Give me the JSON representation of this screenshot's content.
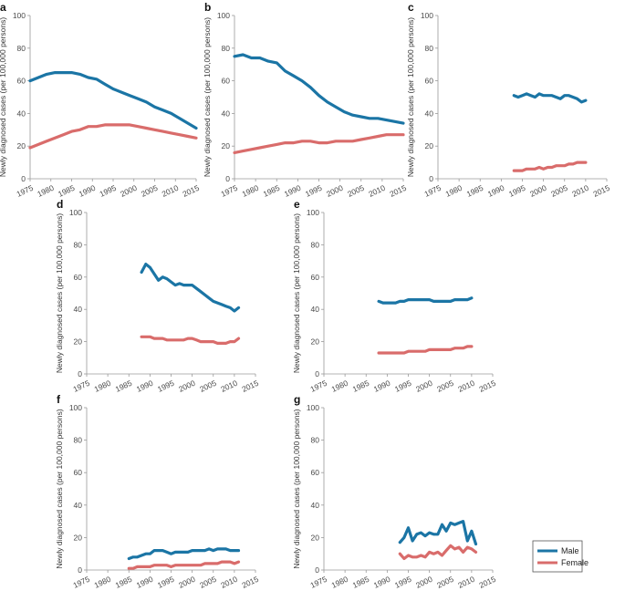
{
  "legend": {
    "items": [
      {
        "label": "Male",
        "color": "#1b75a5"
      },
      {
        "label": "Female",
        "color": "#d96c6b"
      }
    ]
  },
  "chart_data": [
    {
      "panel": "a",
      "type": "line",
      "ylabel": "Newly diagnosed cases (per 100,000 persons)",
      "xlim": [
        1975,
        2015
      ],
      "ylim": [
        0,
        100
      ],
      "xticks": [
        "1975",
        "1980",
        "1985",
        "1990",
        "1995",
        "2000",
        "2005",
        "2010",
        "2015"
      ],
      "yticks": [
        "0",
        "20",
        "40",
        "60",
        "80",
        "100"
      ],
      "series": [
        {
          "name": "Male",
          "color": "#1b75a5",
          "x": [
            1975,
            1977,
            1979,
            1981,
            1983,
            1985,
            1987,
            1989,
            1991,
            1993,
            1995,
            1997,
            1999,
            2001,
            2003,
            2005,
            2007,
            2009,
            2011,
            2013,
            2015
          ],
          "y": [
            60,
            62,
            64,
            65,
            65,
            65,
            64,
            62,
            61,
            58,
            55,
            53,
            51,
            49,
            47,
            44,
            42,
            40,
            37,
            34,
            31
          ]
        },
        {
          "name": "Female",
          "color": "#d96c6b",
          "x": [
            1975,
            1977,
            1979,
            1981,
            1983,
            1985,
            1987,
            1989,
            1991,
            1993,
            1995,
            1997,
            1999,
            2001,
            2003,
            2005,
            2007,
            2009,
            2011,
            2013,
            2015
          ],
          "y": [
            19,
            21,
            23,
            25,
            27,
            29,
            30,
            32,
            32,
            33,
            33,
            33,
            33,
            32,
            31,
            30,
            29,
            28,
            27,
            26,
            25
          ]
        }
      ]
    },
    {
      "panel": "b",
      "type": "line",
      "ylabel": "Newly diagnosed cases (per 100,000 persons)",
      "xlim": [
        1975,
        2015
      ],
      "ylim": [
        0,
        100
      ],
      "xticks": [
        "1975",
        "1980",
        "1985",
        "1990",
        "1995",
        "2000",
        "2005",
        "2010",
        "2015"
      ],
      "yticks": [
        "0",
        "20",
        "40",
        "60",
        "80",
        "100"
      ],
      "series": [
        {
          "name": "Male",
          "color": "#1b75a5",
          "x": [
            1975,
            1977,
            1979,
            1981,
            1983,
            1985,
            1987,
            1989,
            1991,
            1993,
            1995,
            1997,
            1999,
            2001,
            2003,
            2005,
            2007,
            2009,
            2011,
            2013,
            2015
          ],
          "y": [
            75,
            76,
            74,
            74,
            72,
            71,
            66,
            63,
            60,
            56,
            51,
            47,
            44,
            41,
            39,
            38,
            37,
            37,
            36,
            35,
            34
          ]
        },
        {
          "name": "Female",
          "color": "#d96c6b",
          "x": [
            1975,
            1977,
            1979,
            1981,
            1983,
            1985,
            1987,
            1989,
            1991,
            1993,
            1995,
            1997,
            1999,
            2001,
            2003,
            2005,
            2007,
            2009,
            2011,
            2013,
            2015
          ],
          "y": [
            16,
            17,
            18,
            19,
            20,
            21,
            22,
            22,
            23,
            23,
            22,
            22,
            23,
            23,
            23,
            24,
            25,
            26,
            27,
            27,
            27
          ]
        }
      ]
    },
    {
      "panel": "c",
      "type": "line",
      "ylabel": "Newly diagnosed cases (per 100,000 persons)",
      "xlim": [
        1975,
        2015
      ],
      "ylim": [
        0,
        100
      ],
      "xticks": [
        "1975",
        "1980",
        "1985",
        "1990",
        "1995",
        "2000",
        "2005",
        "2010",
        "2015"
      ],
      "yticks": [
        "0",
        "20",
        "40",
        "60",
        "80",
        "100"
      ],
      "series": [
        {
          "name": "Male",
          "color": "#1b75a5",
          "x": [
            1993,
            1994,
            1995,
            1996,
            1997,
            1998,
            1999,
            2000,
            2001,
            2002,
            2003,
            2004,
            2005,
            2006,
            2007,
            2008,
            2009,
            2010
          ],
          "y": [
            51,
            50,
            51,
            52,
            51,
            50,
            52,
            51,
            51,
            51,
            50,
            49,
            51,
            51,
            50,
            49,
            47,
            48
          ]
        },
        {
          "name": "Female",
          "color": "#d96c6b",
          "x": [
            1993,
            1994,
            1995,
            1996,
            1997,
            1998,
            1999,
            2000,
            2001,
            2002,
            2003,
            2004,
            2005,
            2006,
            2007,
            2008,
            2009,
            2010
          ],
          "y": [
            5,
            5,
            5,
            6,
            6,
            6,
            7,
            6,
            7,
            7,
            8,
            8,
            8,
            9,
            9,
            10,
            10,
            10
          ]
        }
      ]
    },
    {
      "panel": "d",
      "type": "line",
      "ylabel": "Newly diagnosed cases (per 100,000 persons)",
      "xlim": [
        1975,
        2015
      ],
      "ylim": [
        0,
        100
      ],
      "xticks": [
        "1975",
        "1980",
        "1985",
        "1990",
        "1995",
        "2000",
        "2005",
        "2010",
        "2015"
      ],
      "yticks": [
        "0",
        "20",
        "40",
        "60",
        "80",
        "100"
      ],
      "series": [
        {
          "name": "Male",
          "color": "#1b75a5",
          "x": [
            1988,
            1989,
            1990,
            1991,
            1992,
            1993,
            1994,
            1995,
            1996,
            1997,
            1998,
            1999,
            2000,
            2001,
            2002,
            2003,
            2004,
            2005,
            2006,
            2007,
            2008,
            2009,
            2010,
            2011
          ],
          "y": [
            63,
            68,
            66,
            62,
            58,
            60,
            59,
            57,
            55,
            56,
            55,
            55,
            55,
            53,
            51,
            49,
            47,
            45,
            44,
            43,
            42,
            41,
            39,
            41
          ]
        },
        {
          "name": "Female",
          "color": "#d96c6b",
          "x": [
            1988,
            1989,
            1990,
            1991,
            1992,
            1993,
            1994,
            1995,
            1996,
            1997,
            1998,
            1999,
            2000,
            2001,
            2002,
            2003,
            2004,
            2005,
            2006,
            2007,
            2008,
            2009,
            2010,
            2011
          ],
          "y": [
            23,
            23,
            23,
            22,
            22,
            22,
            21,
            21,
            21,
            21,
            21,
            22,
            22,
            21,
            20,
            20,
            20,
            20,
            19,
            19,
            19,
            20,
            20,
            22
          ]
        }
      ]
    },
    {
      "panel": "e",
      "type": "line",
      "ylabel": "Newly diagnosed cases (per 100,000 persons)",
      "xlim": [
        1975,
        2015
      ],
      "ylim": [
        0,
        100
      ],
      "xticks": [
        "1975",
        "1980",
        "1985",
        "1990",
        "1995",
        "2000",
        "2005",
        "2010",
        "2015"
      ],
      "yticks": [
        "0",
        "20",
        "40",
        "60",
        "80",
        "100"
      ],
      "series": [
        {
          "name": "Male",
          "color": "#1b75a5",
          "x": [
            1988,
            1989,
            1990,
            1991,
            1992,
            1993,
            1994,
            1995,
            1996,
            1997,
            1998,
            1999,
            2000,
            2001,
            2002,
            2003,
            2004,
            2005,
            2006,
            2007,
            2008,
            2009,
            2010
          ],
          "y": [
            45,
            44,
            44,
            44,
            44,
            45,
            45,
            46,
            46,
            46,
            46,
            46,
            46,
            45,
            45,
            45,
            45,
            45,
            46,
            46,
            46,
            46,
            47
          ]
        },
        {
          "name": "Female",
          "color": "#d96c6b",
          "x": [
            1988,
            1989,
            1990,
            1991,
            1992,
            1993,
            1994,
            1995,
            1996,
            1997,
            1998,
            1999,
            2000,
            2001,
            2002,
            2003,
            2004,
            2005,
            2006,
            2007,
            2008,
            2009,
            2010
          ],
          "y": [
            13,
            13,
            13,
            13,
            13,
            13,
            13,
            14,
            14,
            14,
            14,
            14,
            15,
            15,
            15,
            15,
            15,
            15,
            16,
            16,
            16,
            17,
            17
          ]
        }
      ]
    },
    {
      "panel": "f",
      "type": "line",
      "ylabel": "Newly diagnosed cases (per 100,000 persons)",
      "xlim": [
        1975,
        2015
      ],
      "ylim": [
        0,
        100
      ],
      "xticks": [
        "1975",
        "1980",
        "1985",
        "1990",
        "1995",
        "2000",
        "2005",
        "2010",
        "2015"
      ],
      "yticks": [
        "0",
        "20",
        "40",
        "60",
        "80",
        "100"
      ],
      "series": [
        {
          "name": "Male",
          "color": "#1b75a5",
          "x": [
            1985,
            1986,
            1987,
            1988,
            1989,
            1990,
            1991,
            1992,
            1993,
            1994,
            1995,
            1996,
            1997,
            1998,
            1999,
            2000,
            2001,
            2002,
            2003,
            2004,
            2005,
            2006,
            2007,
            2008,
            2009,
            2010,
            2011
          ],
          "y": [
            7,
            8,
            8,
            9,
            10,
            10,
            12,
            12,
            12,
            11,
            10,
            11,
            11,
            11,
            11,
            12,
            12,
            12,
            12,
            13,
            12,
            13,
            13,
            13,
            12,
            12,
            12
          ]
        },
        {
          "name": "Female",
          "color": "#d96c6b",
          "x": [
            1985,
            1986,
            1987,
            1988,
            1989,
            1990,
            1991,
            1992,
            1993,
            1994,
            1995,
            1996,
            1997,
            1998,
            1999,
            2000,
            2001,
            2002,
            2003,
            2004,
            2005,
            2006,
            2007,
            2008,
            2009,
            2010,
            2011
          ],
          "y": [
            1,
            1,
            2,
            2,
            2,
            2,
            3,
            3,
            3,
            3,
            2,
            3,
            3,
            3,
            3,
            3,
            3,
            3,
            4,
            4,
            4,
            4,
            5,
            5,
            5,
            4,
            5
          ]
        }
      ]
    },
    {
      "panel": "g",
      "type": "line",
      "ylabel": "Newly diagnosed cases (per 100,000 persons)",
      "xlim": [
        1975,
        2015
      ],
      "ylim": [
        0,
        100
      ],
      "xticks": [
        "1975",
        "1980",
        "1985",
        "1990",
        "1995",
        "2000",
        "2005",
        "2010",
        "2015"
      ],
      "yticks": [
        "0",
        "20",
        "40",
        "60",
        "80",
        "100"
      ],
      "series": [
        {
          "name": "Male",
          "color": "#1b75a5",
          "x": [
            1993,
            1994,
            1995,
            1996,
            1997,
            1998,
            1999,
            2000,
            2001,
            2002,
            2003,
            2004,
            2005,
            2006,
            2007,
            2008,
            2009,
            2010,
            2011
          ],
          "y": [
            17,
            20,
            26,
            18,
            22,
            23,
            21,
            23,
            22,
            22,
            28,
            24,
            29,
            28,
            29,
            30,
            18,
            24,
            16
          ]
        },
        {
          "name": "Female",
          "color": "#d96c6b",
          "x": [
            1993,
            1994,
            1995,
            1996,
            1997,
            1998,
            1999,
            2000,
            2001,
            2002,
            2003,
            2004,
            2005,
            2006,
            2007,
            2008,
            2009,
            2010,
            2011
          ],
          "y": [
            10,
            7,
            9,
            8,
            8,
            9,
            8,
            11,
            10,
            11,
            9,
            12,
            15,
            13,
            14,
            11,
            14,
            13,
            11
          ]
        }
      ]
    }
  ]
}
